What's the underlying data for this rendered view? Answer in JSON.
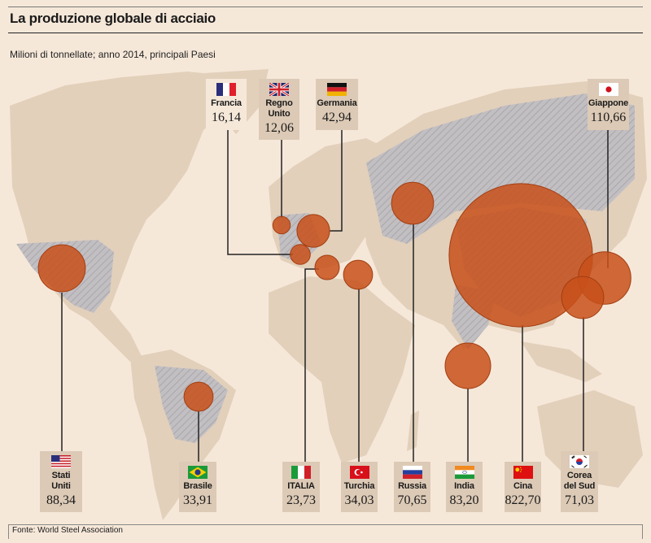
{
  "header": {
    "title": "La produzione globale di acciaio",
    "subtitle": "Milioni di tonnellate; anno 2014, principali Paesi"
  },
  "colors": {
    "bubble": "#c8501a",
    "land": "#e2d0bb",
    "producer": "#b9b7bb",
    "label_bg": "#dccab6"
  },
  "chart_data": {
    "type": "proportional-symbol-map",
    "title": "La produzione globale di acciaio",
    "unit": "Milioni di tonnellate",
    "year": 2014,
    "countries": [
      {
        "id": "fr",
        "name": "Francia",
        "value": 16.14,
        "display": "16,14"
      },
      {
        "id": "uk",
        "name": "Regno Unito",
        "value": 12.06,
        "display": "12,06"
      },
      {
        "id": "de",
        "name": "Germania",
        "value": 42.94,
        "display": "42,94"
      },
      {
        "id": "jp",
        "name": "Giappone",
        "value": 110.66,
        "display": "110,66"
      },
      {
        "id": "us",
        "name": "Stati Uniti",
        "value": 88.34,
        "display": "88,34"
      },
      {
        "id": "br",
        "name": "Brasile",
        "value": 33.91,
        "display": "33,91"
      },
      {
        "id": "it",
        "name": "ITALIA",
        "value": 23.73,
        "display": "23,73"
      },
      {
        "id": "tr",
        "name": "Turchia",
        "value": 34.03,
        "display": "34,03"
      },
      {
        "id": "ru",
        "name": "Russia",
        "value": 70.65,
        "display": "70,65"
      },
      {
        "id": "in",
        "name": "India",
        "value": 83.2,
        "display": "83,20"
      },
      {
        "id": "cn",
        "name": "Cina",
        "value": 822.7,
        "display": "822,70"
      },
      {
        "id": "kr",
        "name": "Corea del Sud",
        "value": 71.03,
        "display": "71,03"
      }
    ]
  },
  "footer": {
    "source": "Fonte: World Steel Association"
  }
}
